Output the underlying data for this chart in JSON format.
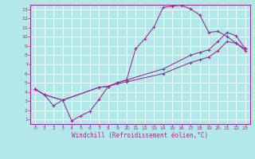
{
  "xlabel": "Windchill (Refroidissement éolien,°C)",
  "bg_color": "#b3e8e8",
  "grid_color": "#c0e0e0",
  "line_color": "#993399",
  "axis_color": "#993399",
  "xlim": [
    -0.5,
    23.5
  ],
  "ylim": [
    0.5,
    13.5
  ],
  "xticks": [
    0,
    1,
    2,
    3,
    4,
    5,
    6,
    7,
    8,
    9,
    10,
    11,
    12,
    13,
    14,
    15,
    16,
    17,
    18,
    19,
    20,
    21,
    22,
    23
  ],
  "yticks": [
    1,
    2,
    3,
    4,
    5,
    6,
    7,
    8,
    9,
    10,
    11,
    12,
    13
  ],
  "curve1_x": [
    0,
    1,
    2,
    3,
    4,
    5,
    6,
    7,
    8,
    9,
    10,
    11,
    12,
    13,
    14,
    15,
    16,
    17,
    18,
    19,
    20,
    21,
    22,
    23
  ],
  "curve1_y": [
    4.3,
    3.7,
    2.5,
    3.1,
    0.85,
    1.4,
    1.9,
    3.2,
    4.6,
    5.0,
    5.3,
    8.7,
    9.8,
    11.1,
    13.2,
    13.35,
    13.45,
    13.05,
    12.4,
    10.5,
    10.6,
    10.05,
    9.3,
    8.5
  ],
  "curve2_x": [
    0,
    1,
    3,
    7,
    8,
    9,
    10,
    14,
    17,
    18,
    19,
    20,
    21,
    22,
    23
  ],
  "curve2_y": [
    4.3,
    3.7,
    3.1,
    4.5,
    4.6,
    5.0,
    5.3,
    6.5,
    8.0,
    8.3,
    8.6,
    9.5,
    10.5,
    10.1,
    8.7
  ],
  "curve3_x": [
    0,
    1,
    3,
    7,
    8,
    9,
    10,
    14,
    17,
    18,
    19,
    20,
    21,
    22,
    23
  ],
  "curve3_y": [
    4.3,
    3.7,
    3.1,
    4.5,
    4.6,
    4.9,
    5.1,
    6.0,
    7.2,
    7.5,
    7.8,
    8.5,
    9.5,
    9.3,
    8.7
  ]
}
